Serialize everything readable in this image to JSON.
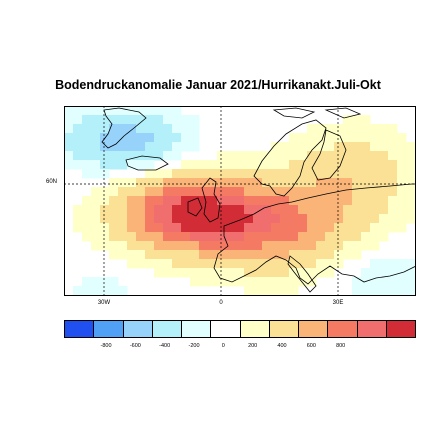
{
  "title": "Bodendruckanomalie Januar 2021/Hurrikanakt.Juli-Okt",
  "map": {
    "lat_labels": [
      {
        "text": "60N",
        "lat": 60
      }
    ],
    "lon_labels": [
      {
        "text": "30W",
        "lon": -30
      },
      {
        "text": "0",
        "lon": 0
      },
      {
        "text": "30E",
        "lon": 30
      }
    ],
    "colors": {
      "land_outline": "#000000",
      "frame": "#000000",
      "grid": "#000000"
    }
  },
  "colorbar": {
    "ticks": [
      "-800",
      "-600",
      "-400",
      "-200",
      "0",
      "200",
      "400",
      "600",
      "800"
    ],
    "colors": [
      "#2050f0",
      "#50a0f5",
      "#96d2fa",
      "#b4f0fa",
      "#e1ffff",
      "#ffffff",
      "#ffffc8",
      "#fae196",
      "#fab478",
      "#f57a64",
      "#f06e6e",
      "#d22d37"
    ]
  }
}
